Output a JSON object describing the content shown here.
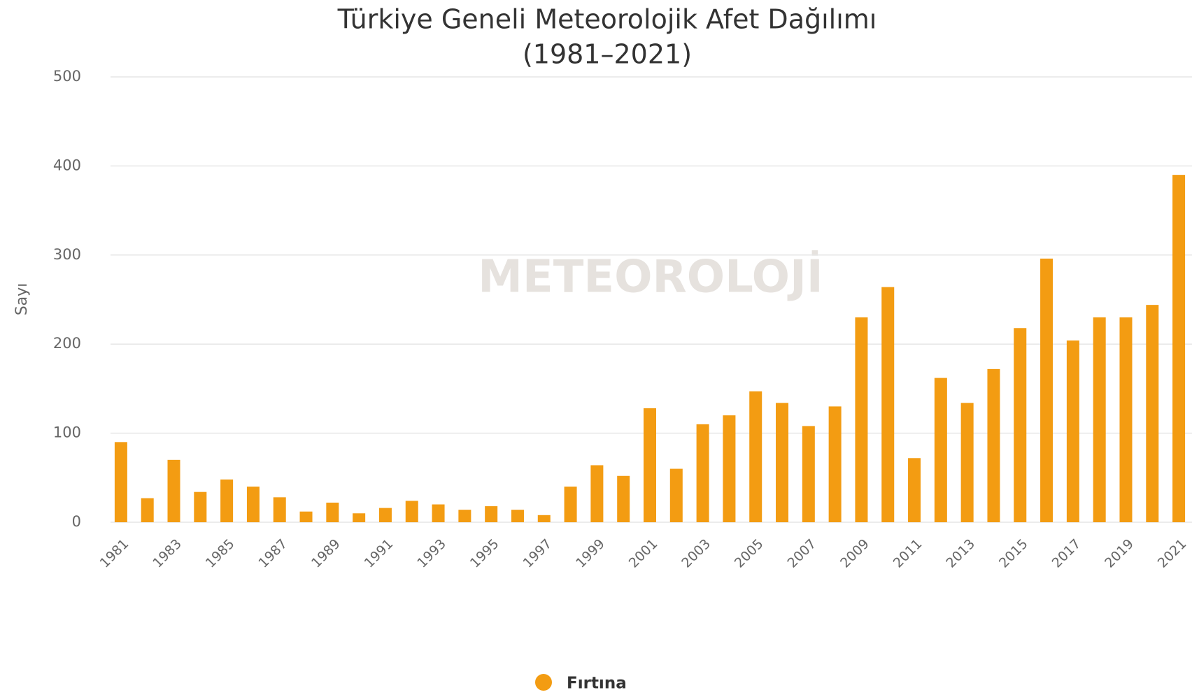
{
  "chart_data": {
    "type": "bar",
    "title": "Türkiye Geneli Meteorolojik Afet Dağılımı",
    "subtitle": "(1981–2021)",
    "y_label": "Sayı",
    "watermark": "METEOROLOJİ",
    "categories": [
      "1981",
      null,
      "1983",
      null,
      "1985",
      null,
      "1987",
      null,
      "1989",
      null,
      "1991",
      null,
      "1993",
      null,
      "1995",
      null,
      "1997",
      null,
      "1999",
      null,
      "2001",
      null,
      "2003",
      null,
      "2005",
      null,
      "2007",
      null,
      "2009",
      null,
      "2011",
      null,
      "2013",
      null,
      "2015",
      null,
      "2017",
      null,
      "2019",
      null,
      "2021"
    ],
    "series": [
      {
        "name": "Fırtına",
        "color": "#f39c12",
        "values": [
          90,
          27,
          70,
          34,
          48,
          40,
          28,
          12,
          22,
          10,
          16,
          24,
          20,
          14,
          18,
          14,
          8,
          40,
          64,
          52,
          128,
          60,
          110,
          120,
          147,
          134,
          108,
          130,
          230,
          264,
          72,
          162,
          134,
          172,
          218,
          296,
          204,
          230,
          230,
          244,
          390
        ]
      }
    ],
    "ylim": [
      0,
      500
    ],
    "yticks": [
      0,
      100,
      200,
      300,
      400,
      500
    ],
    "grid": true
  }
}
